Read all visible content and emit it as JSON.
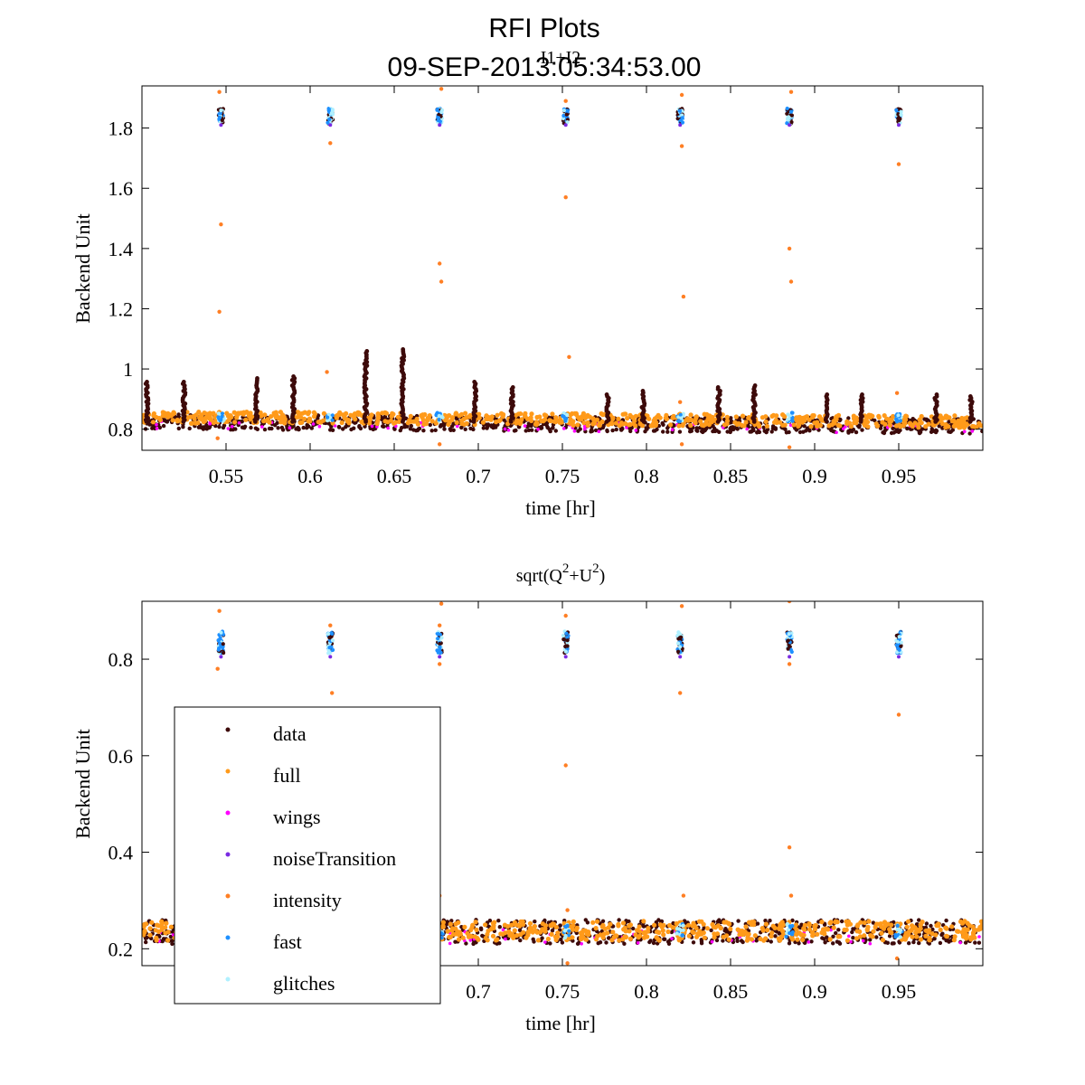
{
  "figure": {
    "title_line1": "RFI Plots",
    "title_line2": "09-SEP-2013:05:34:53.00"
  },
  "legend": [
    {
      "label": "data",
      "color": "#3d0a0a"
    },
    {
      "label": "full",
      "color": "#ff9a1a"
    },
    {
      "label": "wings",
      "color": "#ff00ff"
    },
    {
      "label": "noiseTransition",
      "color": "#7a2be2"
    },
    {
      "label": "intensity",
      "color": "#ff7f24"
    },
    {
      "label": "fast",
      "color": "#1e90ff"
    },
    {
      "label": "glitches",
      "color": "#b0f0ff"
    }
  ],
  "chart_data": [
    {
      "type": "scatter",
      "title": "I1+I2",
      "xlabel": "time [hr]",
      "ylabel": "Backend Unit",
      "xlim": [
        0.5,
        1.0
      ],
      "ylim": [
        0.73,
        1.94
      ],
      "xticks": [
        "0.55",
        "0.6",
        "0.65",
        "0.7",
        "0.75",
        "0.8",
        "0.85",
        "0.9",
        "0.95"
      ],
      "yticks": [
        "0.8",
        "1",
        "1.2",
        "1.4",
        "1.6",
        "1.8"
      ],
      "baseline_data": 0.825,
      "baseline_full": 0.84,
      "spike_times": [
        0.503,
        0.525,
        0.568,
        0.59,
        0.633,
        0.655,
        0.698,
        0.72,
        0.777,
        0.798,
        0.843,
        0.864,
        0.907,
        0.928,
        0.972,
        0.993
      ],
      "spike_peaks": [
        0.96,
        0.96,
        0.97,
        0.98,
        1.06,
        1.07,
        0.96,
        0.94,
        0.92,
        0.93,
        0.94,
        0.95,
        0.92,
        0.92,
        0.92,
        0.91
      ],
      "cal_times": [
        0.547,
        0.612,
        0.677,
        0.752,
        0.82,
        0.885,
        0.95
      ],
      "cal_level": 1.84,
      "outliers": [
        [
          0.546,
          1.92
        ],
        [
          0.547,
          1.48
        ],
        [
          0.546,
          1.19
        ],
        [
          0.545,
          0.77
        ],
        [
          0.612,
          1.75
        ],
        [
          0.61,
          0.99
        ],
        [
          0.677,
          1.35
        ],
        [
          0.678,
          1.29
        ],
        [
          0.677,
          0.75
        ],
        [
          0.678,
          1.93
        ],
        [
          0.752,
          1.57
        ],
        [
          0.754,
          1.04
        ],
        [
          0.752,
          1.89
        ],
        [
          0.821,
          1.74
        ],
        [
          0.822,
          1.24
        ],
        [
          0.82,
          0.89
        ],
        [
          0.821,
          0.75
        ],
        [
          0.821,
          1.91
        ],
        [
          0.885,
          1.4
        ],
        [
          0.886,
          1.29
        ],
        [
          0.886,
          1.92
        ],
        [
          0.885,
          0.74
        ],
        [
          0.95,
          1.68
        ],
        [
          0.949,
          0.92
        ]
      ]
    },
    {
      "type": "scatter",
      "title": "sqrt(Q",
      "title_mid": "+U",
      "title_end": ")",
      "title_exp": "2",
      "xlabel": "time [hr]",
      "ylabel": "Backend Unit",
      "xlim": [
        0.5,
        1.0
      ],
      "ylim": [
        0.165,
        0.92
      ],
      "xticks": [
        "0.7",
        "0.75",
        "0.8",
        "0.85",
        "0.9",
        "0.95"
      ],
      "yticks": [
        "0.2",
        "0.4",
        "0.6",
        "0.8"
      ],
      "baseline_data": 0.235,
      "baseline_full": 0.237,
      "cal_times": [
        0.547,
        0.612,
        0.677,
        0.752,
        0.82,
        0.885,
        0.95
      ],
      "cal_level": 0.835,
      "outliers": [
        [
          0.546,
          0.9
        ],
        [
          0.545,
          0.78
        ],
        [
          0.612,
          0.87
        ],
        [
          0.613,
          0.73
        ],
        [
          0.677,
          0.87
        ],
        [
          0.677,
          0.79
        ],
        [
          0.677,
          0.31
        ],
        [
          0.678,
          0.915
        ],
        [
          0.752,
          0.89
        ],
        [
          0.752,
          0.58
        ],
        [
          0.753,
          0.28
        ],
        [
          0.753,
          0.17
        ],
        [
          0.821,
          0.91
        ],
        [
          0.82,
          0.73
        ],
        [
          0.822,
          0.31
        ],
        [
          0.885,
          0.41
        ],
        [
          0.886,
          0.31
        ],
        [
          0.885,
          0.92
        ],
        [
          0.885,
          0.79
        ],
        [
          0.95,
          0.685
        ],
        [
          0.949,
          0.18
        ]
      ]
    }
  ]
}
